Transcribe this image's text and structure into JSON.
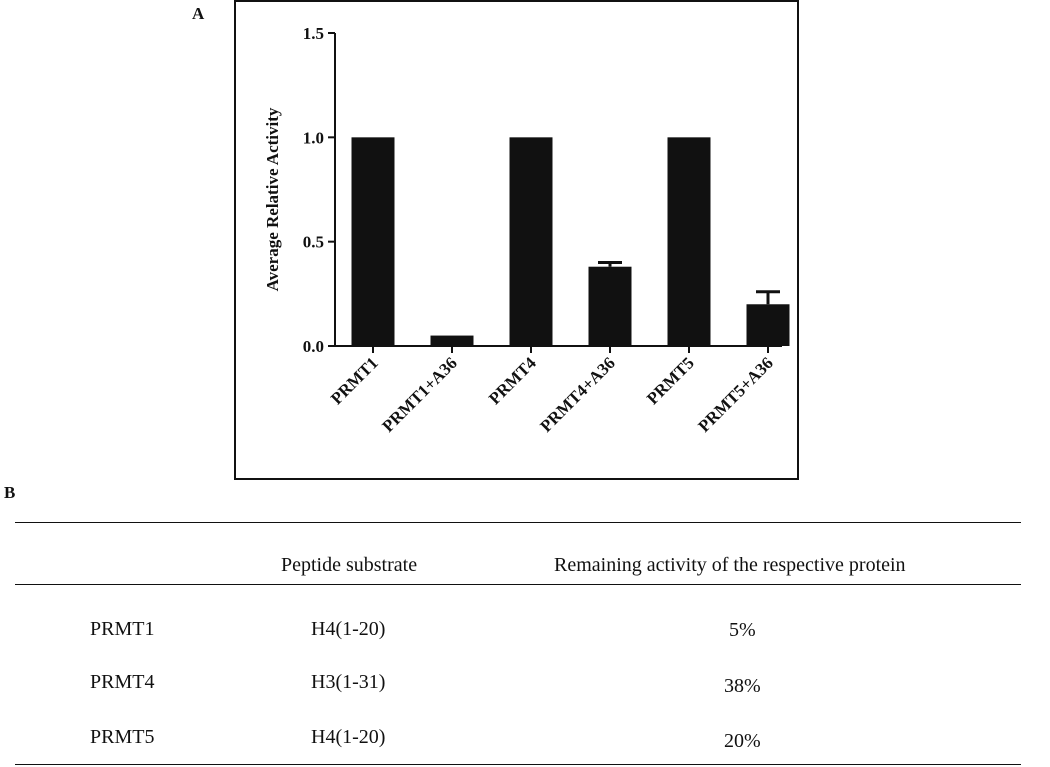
{
  "panelA": {
    "letter": "A"
  },
  "panelB": {
    "letter": "B"
  },
  "chart_data": {
    "type": "bar",
    "title": "",
    "xlabel": "",
    "ylabel": "Average Relative Activity",
    "ylim": [
      0,
      1.5
    ],
    "yticks": [
      0.0,
      0.5,
      1.0,
      1.5
    ],
    "ytick_labels": [
      "0.0",
      "0.5",
      "1.0",
      "1.5"
    ],
    "categories": [
      "PRMT1",
      "PRMT1+A36",
      "PRMT4",
      "PRMT4+A36",
      "PRMT5",
      "PRMT5+A36"
    ],
    "values": [
      1.0,
      0.05,
      1.0,
      0.38,
      1.0,
      0.2
    ],
    "errors": [
      0,
      0,
      0,
      0.02,
      0,
      0.06
    ],
    "grid": false,
    "legend": "none",
    "bar_color": "#111111"
  },
  "table": {
    "headers": [
      "",
      "Peptide substrate",
      "Remaining activity of the respective protein"
    ],
    "rows": [
      [
        "PRMT1",
        "H4(1-20)",
        "5%"
      ],
      [
        "PRMT4",
        "H3(1-31)",
        "38%"
      ],
      [
        "PRMT5",
        "H4(1-20)",
        "20%"
      ]
    ]
  }
}
